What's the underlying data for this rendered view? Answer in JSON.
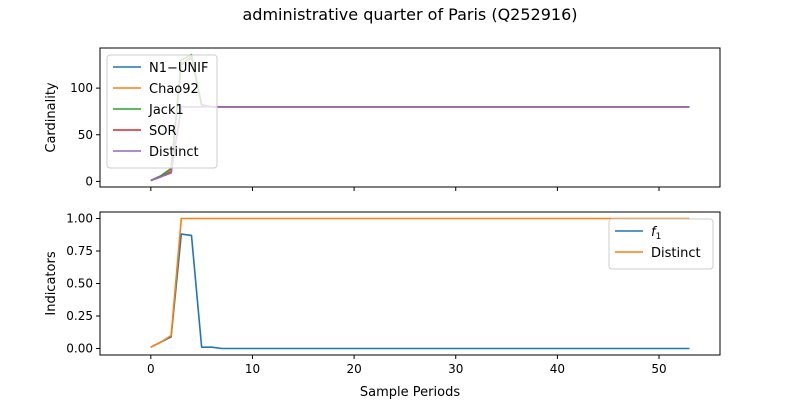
{
  "title": "administrative quarter of Paris (Q252916)",
  "colors": {
    "c0": "#1f77b4",
    "c1": "#ff7f0e",
    "c2": "#2ca02c",
    "c3": "#d62728",
    "c4": "#9467bd"
  },
  "chart_data": [
    {
      "type": "line",
      "title": "",
      "xlabel": "",
      "ylabel": "Cardinality",
      "xlim": [
        -5,
        56
      ],
      "ylim": [
        -6,
        143
      ],
      "xticks": [
        0,
        10,
        20,
        30,
        40,
        50
      ],
      "show_xtick_labels": false,
      "yticks": [
        0,
        50,
        100
      ],
      "grid": false,
      "legend_position": "upper-left",
      "x": [
        0,
        1,
        2,
        3,
        4,
        5,
        6,
        7,
        8,
        53
      ],
      "series": [
        {
          "name": "N1−UNIF",
          "color": "#1f77b4",
          "values": [
            1,
            6,
            12,
            125,
            133,
            82,
            80,
            80,
            80,
            80
          ]
        },
        {
          "name": "Chao92",
          "color": "#ff7f0e",
          "values": [
            1,
            6,
            12,
            126,
            134,
            82,
            80,
            80,
            80,
            80
          ]
        },
        {
          "name": "Jack1",
          "color": "#2ca02c",
          "values": [
            1,
            6,
            14,
            130,
            136,
            82,
            80,
            80,
            80,
            80
          ]
        },
        {
          "name": "SOR",
          "color": "#d62728",
          "values": [
            1,
            5,
            10,
            80,
            80,
            80,
            80,
            80,
            80,
            80
          ]
        },
        {
          "name": "Distinct",
          "color": "#9467bd",
          "values": [
            1,
            5,
            9,
            80,
            80,
            80,
            80,
            80,
            80,
            80
          ]
        }
      ]
    },
    {
      "type": "line",
      "title": "",
      "xlabel": "Sample Periods",
      "ylabel": "Indicators",
      "xlim": [
        -5,
        56
      ],
      "ylim": [
        -0.05,
        1.05
      ],
      "xticks": [
        0,
        10,
        20,
        30,
        40,
        50
      ],
      "show_xtick_labels": true,
      "yticks": [
        0.0,
        0.25,
        0.5,
        0.75,
        1.0
      ],
      "yticklabels": [
        "0.00",
        "0.25",
        "0.50",
        "0.75",
        "1.00"
      ],
      "grid": false,
      "legend_position": "upper-right",
      "x": [
        0,
        1,
        2,
        3,
        4,
        5,
        6,
        7,
        53
      ],
      "series": [
        {
          "name": "f1",
          "color": "#1f77b4",
          "values": [
            0.01,
            0.05,
            0.09,
            0.88,
            0.87,
            0.01,
            0.01,
            0.0,
            0.0
          ]
        },
        {
          "name": "Distinct",
          "color": "#ff7f0e",
          "values": [
            0.01,
            0.05,
            0.1,
            1.0,
            1.0,
            1.0,
            1.0,
            1.0,
            1.0
          ]
        }
      ]
    }
  ]
}
